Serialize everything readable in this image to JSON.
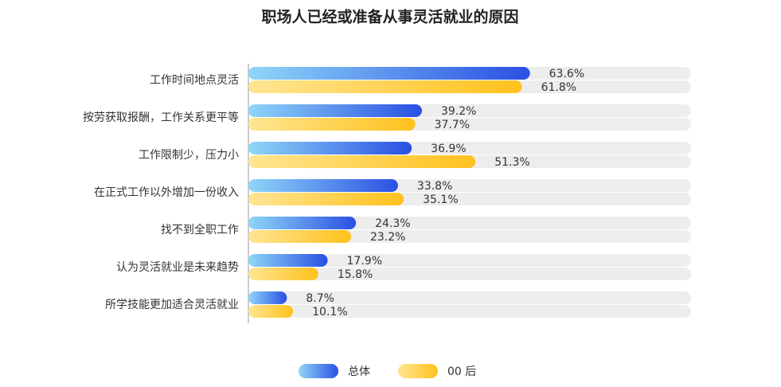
{
  "chart_data": {
    "type": "bar",
    "orientation": "horizontal",
    "title": "职场人已经或准备从事灵活就业的原因",
    "categories": [
      "工作时间地点灵活",
      "按劳获取报酬，工作关系更平等",
      "工作限制少，压力小",
      "在正式工作以外增加一份收入",
      "找不到全职工作",
      "认为灵活就业是未来趋势",
      "所学技能更加适合灵活就业"
    ],
    "xlim": [
      0,
      100
    ],
    "series": [
      {
        "name": "总体",
        "color": "#2a4fe3",
        "values": [
          63.6,
          39.2,
          36.9,
          33.8,
          24.3,
          17.9,
          8.7
        ],
        "value_labels": [
          "63.6%",
          "39.2%",
          "36.9%",
          "33.8%",
          "24.3%",
          "17.9%",
          "8.7%"
        ]
      },
      {
        "name": "00 后",
        "color": "#ffc11c",
        "values": [
          61.8,
          37.7,
          51.3,
          35.1,
          23.2,
          15.8,
          10.1
        ],
        "value_labels": [
          "61.8%",
          "37.7%",
          "51.3%",
          "35.1%",
          "23.2%",
          "15.8%",
          "10.1%"
        ]
      }
    ]
  }
}
